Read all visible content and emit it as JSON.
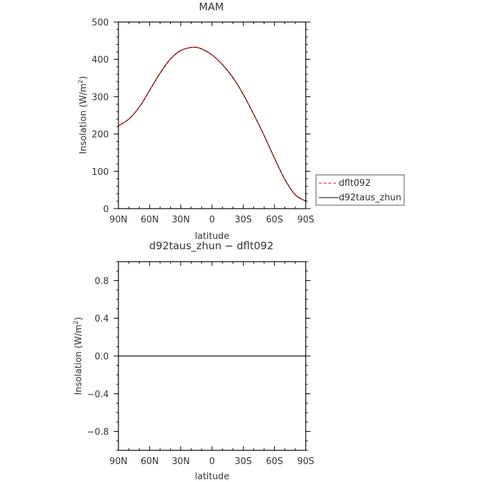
{
  "chart_data": [
    {
      "type": "line",
      "title": "MAM",
      "xlabel": "latitude",
      "ylabel": "Insolation (W/m",
      "ylabel_sup": "2",
      "ylabel_tail": ")",
      "x_tick_labels": [
        "90N",
        "60N",
        "30N",
        "0",
        "30S",
        "60S",
        "90S"
      ],
      "x_tick_values": [
        90,
        60,
        30,
        0,
        -30,
        -60,
        -90
      ],
      "xlim": [
        90,
        -90
      ],
      "ylim": [
        0,
        500
      ],
      "y_ticks": [
        0,
        100,
        200,
        300,
        400,
        500
      ],
      "y_tick_labels": [
        "0",
        "100",
        "200",
        "300",
        "400",
        "500"
      ],
      "legend_position": "right-outside",
      "x": [
        90,
        80,
        70,
        60,
        50,
        40,
        30,
        20,
        15,
        10,
        0,
        -10,
        -20,
        -30,
        -40,
        -50,
        -60,
        -70,
        -80,
        -90
      ],
      "series": [
        {
          "name": "dflt092",
          "color": "#e00000",
          "dash": "dashed",
          "values": [
            222,
            240,
            272,
            317,
            363,
            401,
            424,
            432,
            432,
            428,
            412,
            386,
            351,
            306,
            253,
            196,
            135,
            78,
            37,
            20
          ]
        },
        {
          "name": "d92taus_zhun",
          "color": "#000000",
          "dash": "solid",
          "values": [
            222,
            240,
            272,
            317,
            363,
            401,
            424,
            432,
            432,
            428,
            412,
            386,
            351,
            306,
            253,
            196,
            135,
            78,
            37,
            20
          ]
        }
      ]
    },
    {
      "type": "line",
      "title": "d92taus_zhun − dflt092",
      "xlabel": "latitude",
      "ylabel": "Insolation (W/m",
      "ylabel_sup": "2",
      "ylabel_tail": ")",
      "x_tick_labels": [
        "90N",
        "60N",
        "30N",
        "0",
        "30S",
        "60S",
        "90S"
      ],
      "x_tick_values": [
        90,
        60,
        30,
        0,
        -30,
        -60,
        -90
      ],
      "xlim": [
        90,
        -90
      ],
      "ylim": [
        -1,
        1
      ],
      "y_ticks": [
        -0.8,
        -0.4,
        0.0,
        0.4,
        0.8
      ],
      "y_tick_labels": [
        "−0.8",
        "−0.4",
        "0.0",
        "0.4",
        "0.8"
      ],
      "x": [
        90,
        -90
      ],
      "series": [
        {
          "color": "#000000",
          "dash": "solid",
          "values": [
            0,
            0
          ]
        }
      ]
    }
  ]
}
